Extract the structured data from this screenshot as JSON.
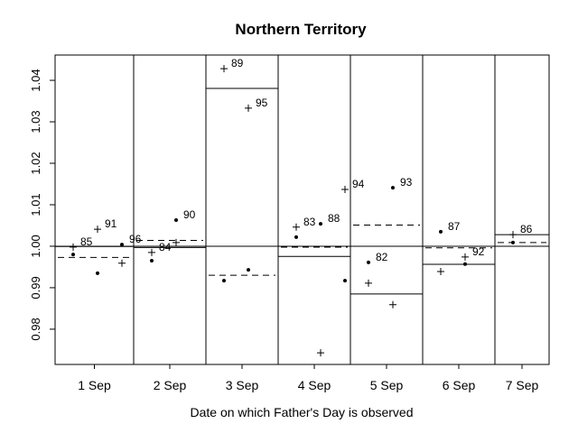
{
  "chart_data": {
    "type": "scatter",
    "title": "Northern Territory",
    "xlabel": "Date on which Father's Day is observed",
    "ylabel": "",
    "ylim": [
      0.9715,
      1.0461
    ],
    "yticks": [
      "0.98",
      "0.99",
      "1.00",
      "1.01",
      "1.02",
      "1.03",
      "1.04"
    ],
    "reference_line": 1.0,
    "grid": false,
    "legend": "none",
    "markers": {
      "plus": "+",
      "dot": "•"
    },
    "mean_lines": {
      "plus": "solid",
      "dot": "dashed"
    },
    "groups": [
      {
        "label": "1 Sep",
        "obs": [
          {
            "year": "85",
            "plus": 0.9998,
            "dot": 0.998,
            "label_on": "plus"
          },
          {
            "year": "91",
            "plus": 1.0041,
            "dot": 0.9935,
            "label_on": "plus"
          },
          {
            "year": "96",
            "plus": 0.9959,
            "dot": 1.0004,
            "label_on": "dot"
          }
        ]
      },
      {
        "label": "2 Sep",
        "obs": [
          {
            "year": "84",
            "plus": 0.9985,
            "dot": 0.9965,
            "label_on": "plus"
          },
          {
            "year": "90",
            "plus": 1.0009,
            "dot": 1.0063,
            "label_on": "dot"
          }
        ]
      },
      {
        "label": "3 Sep",
        "obs": [
          {
            "year": "89",
            "plus": 1.0428,
            "dot": 0.9917,
            "label_on": "plus"
          },
          {
            "year": "95",
            "plus": 1.0333,
            "dot": 0.9943,
            "label_on": "plus"
          }
        ]
      },
      {
        "label": "4 Sep",
        "obs": [
          {
            "year": "83",
            "plus": 1.0046,
            "dot": 1.0022,
            "label_on": "plus"
          },
          {
            "year": "88",
            "plus": 0.9743,
            "dot": 1.0054,
            "label_on": "dot"
          },
          {
            "year": "94",
            "plus": 1.0137,
            "dot": 0.9917,
            "label_on": "plus"
          }
        ]
      },
      {
        "label": "5 Sep",
        "obs": [
          {
            "year": "82",
            "plus": 0.9911,
            "dot": 0.9961,
            "label_on": "dot"
          },
          {
            "year": "93",
            "plus": 0.9859,
            "dot": 1.0141,
            "label_on": "dot"
          }
        ]
      },
      {
        "label": "6 Sep",
        "obs": [
          {
            "year": "87",
            "plus": 0.9939,
            "dot": 1.0035,
            "label_on": "dot"
          },
          {
            "year": "92",
            "plus": 0.9974,
            "dot": 0.9957,
            "label_on": "plus"
          }
        ]
      },
      {
        "label": "7 Sep",
        "obs": [
          {
            "year": "86",
            "plus": 1.0028,
            "dot": 1.0009,
            "label_on": "plus"
          }
        ]
      }
    ]
  }
}
